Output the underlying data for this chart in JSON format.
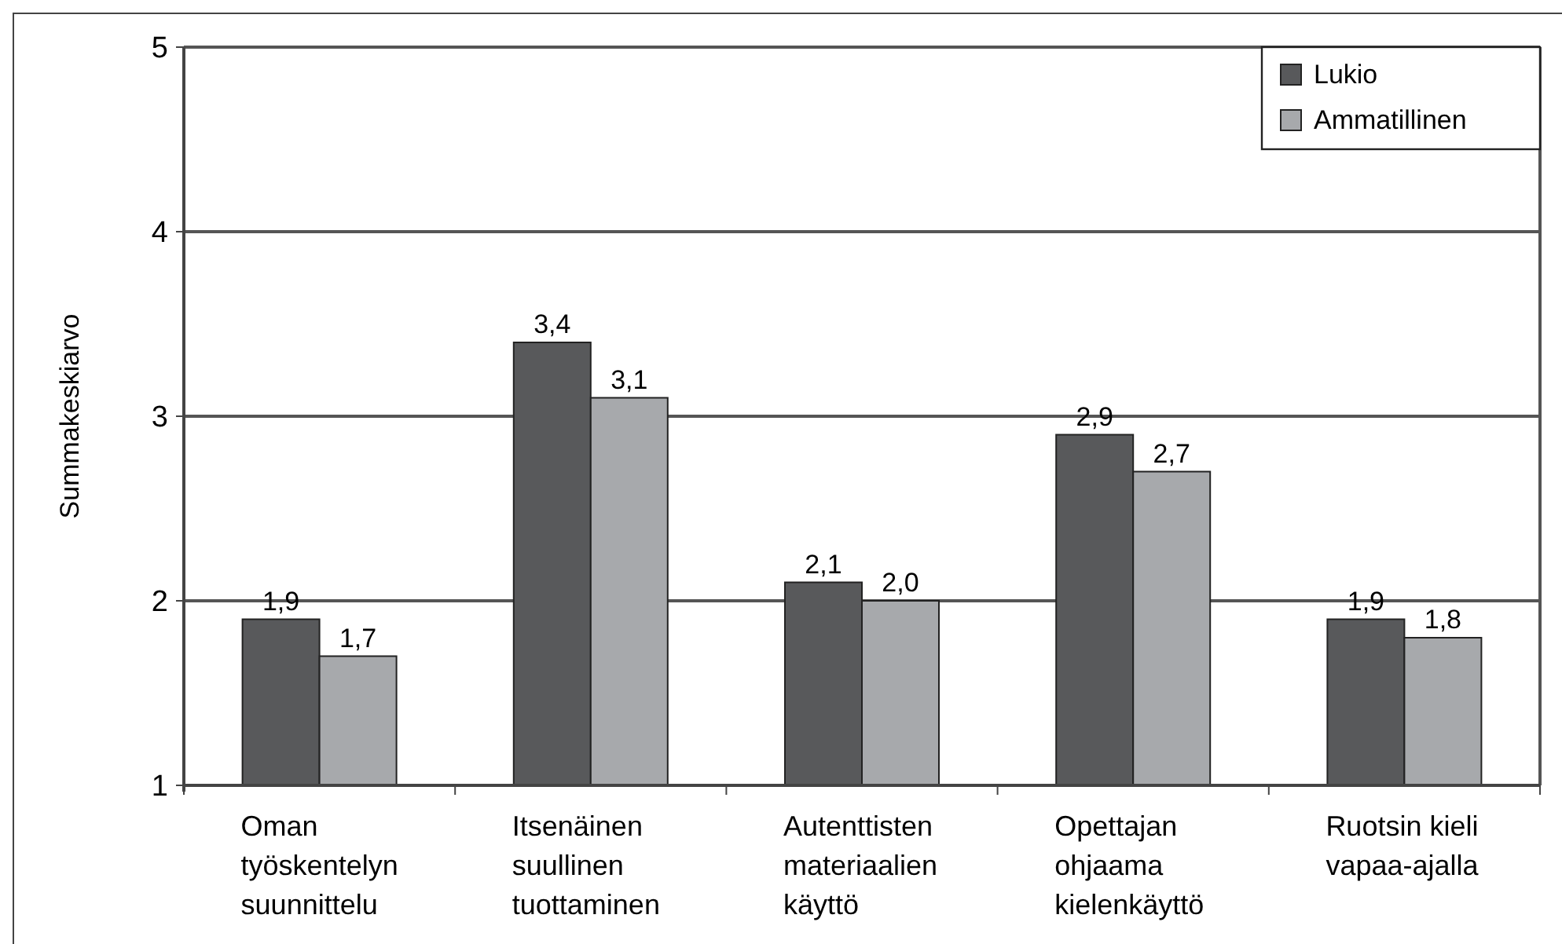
{
  "chart_data": {
    "type": "bar",
    "ylabel": "Summakeskiarvo",
    "categories": [
      "Oman työskentelyn suunnittelu",
      "Itsenäinen suullinen tuottaminen",
      "Autenttisten materiaalien käyttö",
      "Opettajan ohjaama kielenkäyttö",
      "Ruotsin kieli vapaa-ajalla"
    ],
    "series": [
      {
        "name": "Lukio",
        "color": "#58595b",
        "values": [
          1.9,
          3.4,
          2.1,
          2.9,
          1.9
        ],
        "value_labels": [
          "1,9",
          "3,4",
          "2,1",
          "2,9",
          "1,9"
        ]
      },
      {
        "name": "Ammatillinen",
        "color": "#a7a9ac",
        "values": [
          1.7,
          3.1,
          2.0,
          2.7,
          1.8
        ],
        "value_labels": [
          "1,7",
          "3,1",
          "2,0",
          "2,7",
          "1,8"
        ]
      }
    ],
    "ylim": [
      1,
      5
    ],
    "yticks": [
      1,
      2,
      3,
      4,
      5
    ],
    "grid": "y",
    "legend": "top right"
  }
}
